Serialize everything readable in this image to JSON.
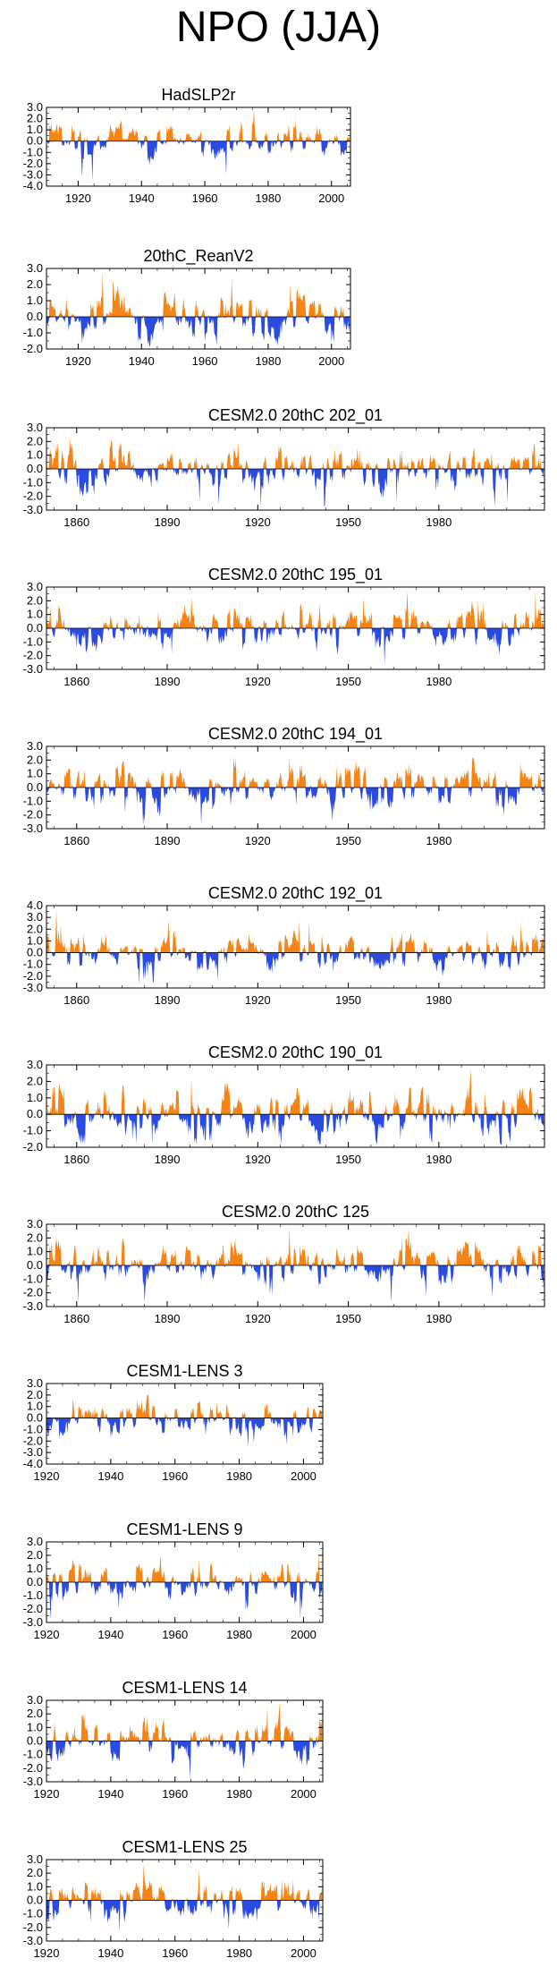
{
  "figure": {
    "title": "NPO (JJA)"
  },
  "colors": {
    "positive": "#f58416",
    "negative": "#2b4be0",
    "axis": "#000000"
  },
  "chart_data": [
    {
      "type": "area",
      "title": "HadSLP2r",
      "xlim": [
        1910,
        2006
      ],
      "ylim": [
        -4.0,
        3.0
      ],
      "xticks": [
        1920,
        1940,
        1960,
        1980,
        2000
      ],
      "yticks": [
        3.0,
        2.0,
        1.0,
        0.0,
        -1.0,
        -2.0,
        -3.0,
        -4.0
      ],
      "ytick_labels": [
        "3.0",
        "2.0",
        "1.0",
        "0.0",
        "-1.0",
        "-2.0",
        "-3.0",
        "-4.0"
      ],
      "pattern": "hadslp"
    },
    {
      "type": "area",
      "title": "20thC_ReanV2",
      "xlim": [
        1910,
        2006
      ],
      "ylim": [
        -2.0,
        3.0
      ],
      "xticks": [
        1920,
        1940,
        1960,
        1980,
        2000
      ],
      "yticks": [
        3.0,
        2.0,
        1.0,
        0.0,
        -1.0,
        -2.0
      ],
      "ytick_labels": [
        "3.0",
        "2.0",
        "1.0",
        "0.0",
        "-1.0",
        "-2.0"
      ],
      "pattern": "reanv2"
    },
    {
      "type": "area",
      "title": "CESM2.0 20thC 202_01",
      "xlim": [
        1850,
        2015
      ],
      "ylim": [
        -3.0,
        3.0
      ],
      "xticks": [
        1860,
        1890,
        1920,
        1950,
        1980
      ],
      "yticks": [
        3.0,
        2.0,
        1.0,
        0.0,
        -1.0,
        -2.0,
        -3.0
      ],
      "ytick_labels": [
        "3.0",
        "2.0",
        "1.0",
        "0.0",
        "-1.0",
        "-2.0",
        "-3.0"
      ],
      "pattern": "c202"
    },
    {
      "type": "area",
      "title": "CESM2.0 20thC 195_01",
      "xlim": [
        1850,
        2015
      ],
      "ylim": [
        -3.0,
        3.0
      ],
      "xticks": [
        1860,
        1890,
        1920,
        1950,
        1980
      ],
      "yticks": [
        3.0,
        2.0,
        1.0,
        0.0,
        -1.0,
        -2.0,
        -3.0
      ],
      "ytick_labels": [
        "3.0",
        "2.0",
        "1.0",
        "0.0",
        "-1.0",
        "-2.0",
        "-3.0"
      ],
      "pattern": "c195"
    },
    {
      "type": "area",
      "title": "CESM2.0 20thC 194_01",
      "xlim": [
        1850,
        2015
      ],
      "ylim": [
        -3.0,
        3.0
      ],
      "xticks": [
        1860,
        1890,
        1920,
        1950,
        1980
      ],
      "yticks": [
        3.0,
        2.0,
        1.0,
        0.0,
        -1.0,
        -2.0,
        -3.0
      ],
      "ytick_labels": [
        "3.0",
        "2.0",
        "1.0",
        "0.0",
        "-1.0",
        "-2.0",
        "-3.0"
      ],
      "pattern": "c194"
    },
    {
      "type": "area",
      "title": "CESM2.0 20thC 192_01",
      "xlim": [
        1850,
        2015
      ],
      "ylim": [
        -3.0,
        4.0
      ],
      "xticks": [
        1860,
        1890,
        1920,
        1950,
        1980
      ],
      "yticks": [
        4.0,
        3.0,
        2.0,
        1.0,
        0.0,
        -1.0,
        -2.0,
        -3.0
      ],
      "ytick_labels": [
        "4.0",
        "3.0",
        "2.0",
        "1.0",
        "0.0",
        "-1.0",
        "-2.0",
        "-3.0"
      ],
      "pattern": "c192"
    },
    {
      "type": "area",
      "title": "CESM2.0 20thC 190_01",
      "xlim": [
        1850,
        2015
      ],
      "ylim": [
        -2.0,
        3.0
      ],
      "xticks": [
        1860,
        1890,
        1920,
        1950,
        1980
      ],
      "yticks": [
        3.0,
        2.0,
        1.0,
        0.0,
        -1.0,
        -2.0
      ],
      "ytick_labels": [
        "3.0",
        "2.0",
        "1.0",
        "0.0",
        "-1.0",
        "-2.0"
      ],
      "pattern": "c190"
    },
    {
      "type": "area",
      "title": "CESM2.0 20thC 125",
      "xlim": [
        1850,
        2015
      ],
      "ylim": [
        -3.0,
        3.0
      ],
      "xticks": [
        1860,
        1890,
        1920,
        1950,
        1980
      ],
      "yticks": [
        3.0,
        2.0,
        1.0,
        0.0,
        -1.0,
        -2.0,
        -3.0
      ],
      "ytick_labels": [
        "3.0",
        "2.0",
        "1.0",
        "0.0",
        "-1.0",
        "-2.0",
        "-3.0"
      ],
      "pattern": "c125"
    },
    {
      "type": "area",
      "title": "CESM1-LENS 3",
      "xlim": [
        1920,
        2006
      ],
      "ylim": [
        -4.0,
        3.0
      ],
      "xticks": [
        1920,
        1940,
        1960,
        1980,
        2000
      ],
      "yticks": [
        3.0,
        2.0,
        1.0,
        0.0,
        -1.0,
        -2.0,
        -3.0,
        -4.0
      ],
      "ytick_labels": [
        "3.0",
        "2.0",
        "1.0",
        "0.0",
        "-1.0",
        "-2.0",
        "-3.0",
        "-4.0"
      ],
      "pattern": "l3"
    },
    {
      "type": "area",
      "title": "CESM1-LENS 9",
      "xlim": [
        1920,
        2006
      ],
      "ylim": [
        -3.0,
        3.0
      ],
      "xticks": [
        1920,
        1940,
        1960,
        1980,
        2000
      ],
      "yticks": [
        3.0,
        2.0,
        1.0,
        0.0,
        -1.0,
        -2.0,
        -3.0
      ],
      "ytick_labels": [
        "3.0",
        "2.0",
        "1.0",
        "0.0",
        "-1.0",
        "-2.0",
        "-3.0"
      ],
      "pattern": "l9"
    },
    {
      "type": "area",
      "title": "CESM1-LENS 14",
      "xlim": [
        1920,
        2006
      ],
      "ylim": [
        -3.0,
        3.0
      ],
      "xticks": [
        1920,
        1940,
        1960,
        1980,
        2000
      ],
      "yticks": [
        3.0,
        2.0,
        1.0,
        0.0,
        -1.0,
        -2.0,
        -3.0
      ],
      "ytick_labels": [
        "3.0",
        "2.0",
        "1.0",
        "0.0",
        "-1.0",
        "-2.0",
        "-3.0"
      ],
      "pattern": "l14"
    },
    {
      "type": "area",
      "title": "CESM1-LENS 25",
      "xlim": [
        1920,
        2006
      ],
      "ylim": [
        -3.0,
        3.0
      ],
      "xticks": [
        1920,
        1940,
        1960,
        1980,
        2000
      ],
      "yticks": [
        3.0,
        2.0,
        1.0,
        0.0,
        -1.0,
        -2.0,
        -3.0
      ],
      "ytick_labels": [
        "3.0",
        "2.0",
        "1.0",
        "0.0",
        "-1.0",
        "-2.0",
        "-3.0"
      ],
      "pattern": "l25"
    }
  ]
}
